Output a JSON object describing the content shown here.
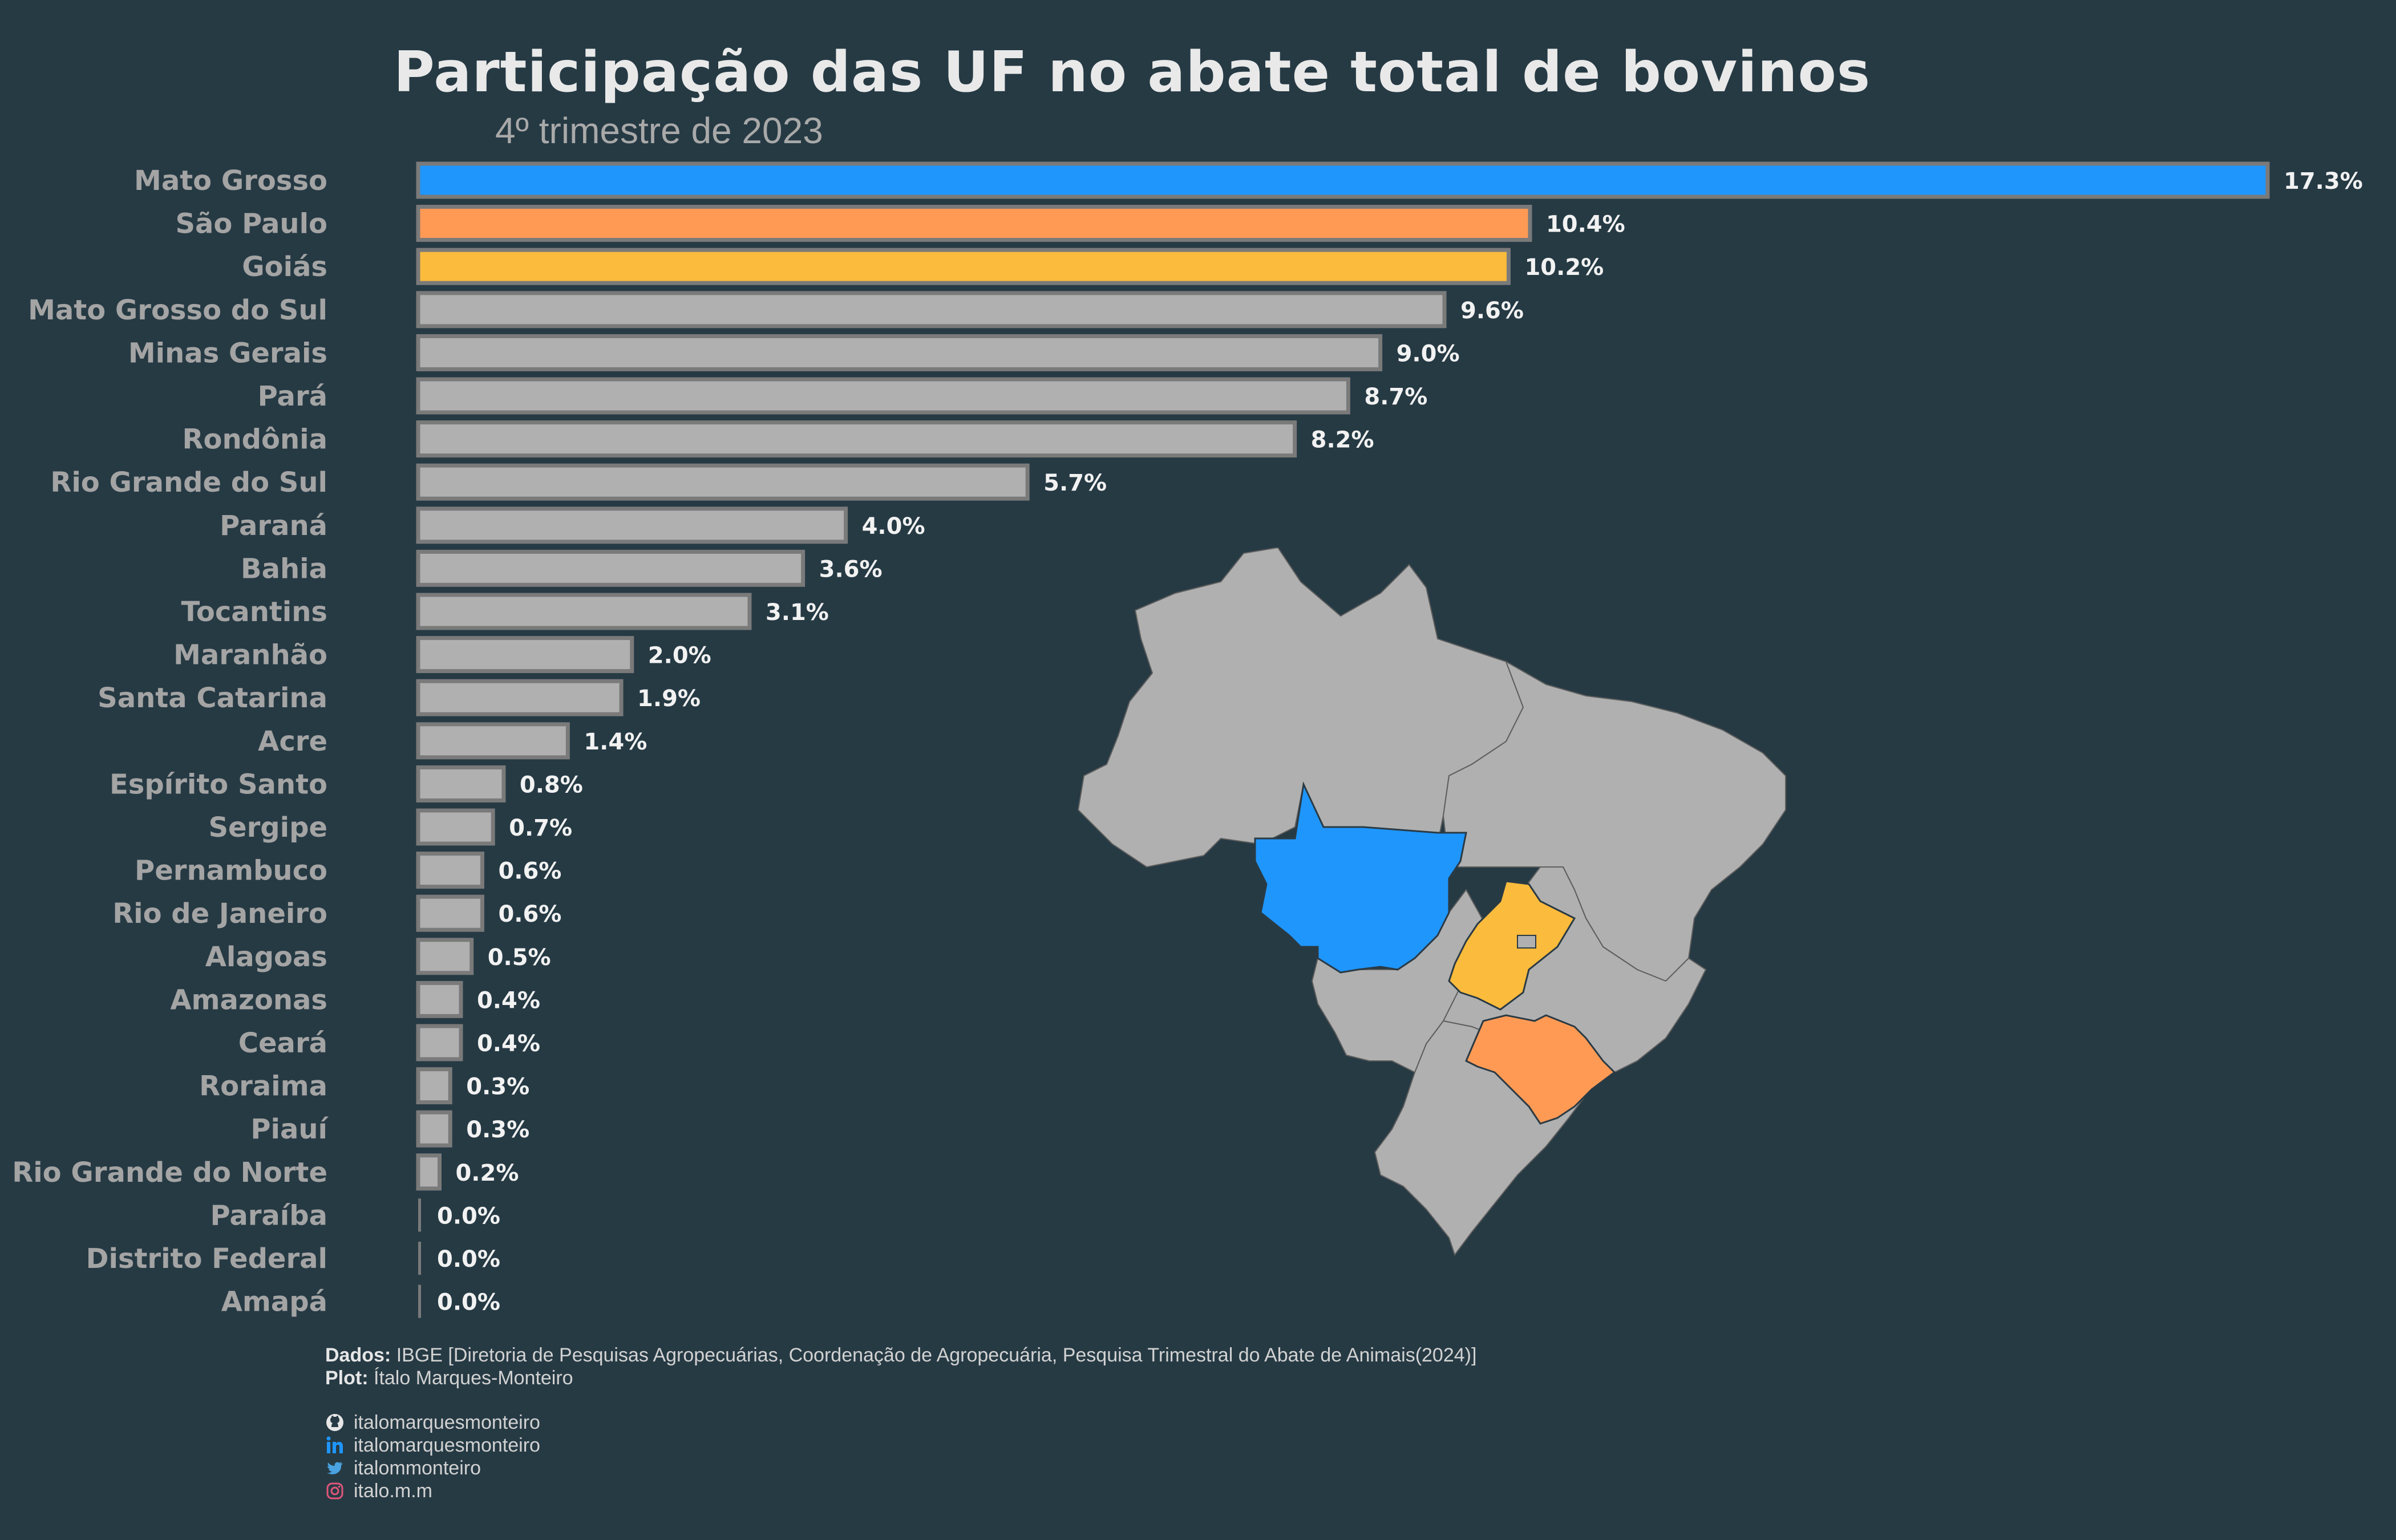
{
  "title": "Participação das UF no abate total de bovinos",
  "subtitle": "4º trimestre de 2023",
  "chart_data": {
    "type": "bar",
    "orientation": "horizontal",
    "categories": [
      "Mato Grosso",
      "São Paulo",
      "Goiás",
      "Mato Grosso do Sul",
      "Minas Gerais",
      "Pará",
      "Rondônia",
      "Rio Grande do Sul",
      "Paraná",
      "Bahia",
      "Tocantins",
      "Maranhão",
      "Santa Catarina",
      "Acre",
      "Espírito Santo",
      "Sergipe",
      "Pernambuco",
      "Rio de Janeiro",
      "Alagoas",
      "Amazonas",
      "Ceará",
      "Roraima",
      "Piauí",
      "Rio Grande do Norte",
      "Paraíba",
      "Distrito Federal",
      "Amapá"
    ],
    "values": [
      17.3,
      10.4,
      10.2,
      9.6,
      9.0,
      8.7,
      8.2,
      5.7,
      4.0,
      3.6,
      3.1,
      2.0,
      1.9,
      1.4,
      0.8,
      0.7,
      0.6,
      0.6,
      0.5,
      0.4,
      0.4,
      0.3,
      0.3,
      0.2,
      0.0,
      0.0,
      0.0
    ],
    "value_labels": [
      "17.3%",
      "10.4%",
      "10.2%",
      "9.6%",
      "9.0%",
      "8.7%",
      "8.2%",
      "5.7%",
      "4.0%",
      "3.6%",
      "3.1%",
      "2.0%",
      "1.9%",
      "1.4%",
      "0.8%",
      "0.7%",
      "0.6%",
      "0.6%",
      "0.5%",
      "0.4%",
      "0.4%",
      "0.3%",
      "0.3%",
      "0.2%",
      "0.0%",
      "0.0%",
      "0.0%"
    ],
    "xlim": [
      0,
      17.3
    ],
    "highlight_colors": {
      "Mato Grosso": "#1e96fc",
      "São Paulo": "#ff9a55",
      "Goiás": "#fbbb3c"
    },
    "default_color": "#b0b0b0",
    "bar_border_color": "#7a7a7a",
    "grid": false
  },
  "map": {
    "default_fill": "#b0b0b0",
    "border_color": "#5e5e5e",
    "highlights": [
      {
        "state": "Mato Grosso",
        "color": "#1e96fc"
      },
      {
        "state": "Goiás",
        "color": "#fbbb3c"
      },
      {
        "state": "São Paulo",
        "color": "#ff9a55"
      }
    ]
  },
  "footer": {
    "dados_label": "Dados:",
    "dados_text": "IBGE [Diretoria de Pesquisas Agropecuárias, Coordenação de Agropecuária, Pesquisa Trimestral do Abate de Animais(2024)]",
    "plot_label": "Plot:",
    "plot_text": "Ítalo Marques-Monteiro",
    "social": [
      {
        "icon": "github-icon",
        "handle": "italomarquesmonteiro"
      },
      {
        "icon": "linkedin-icon",
        "handle": "italomarquesmonteiro"
      },
      {
        "icon": "twitter-icon",
        "handle": "italommonteiro"
      },
      {
        "icon": "instagram-icon",
        "handle": "italo.m.m"
      }
    ]
  },
  "colors": {
    "background": "#263a44"
  }
}
